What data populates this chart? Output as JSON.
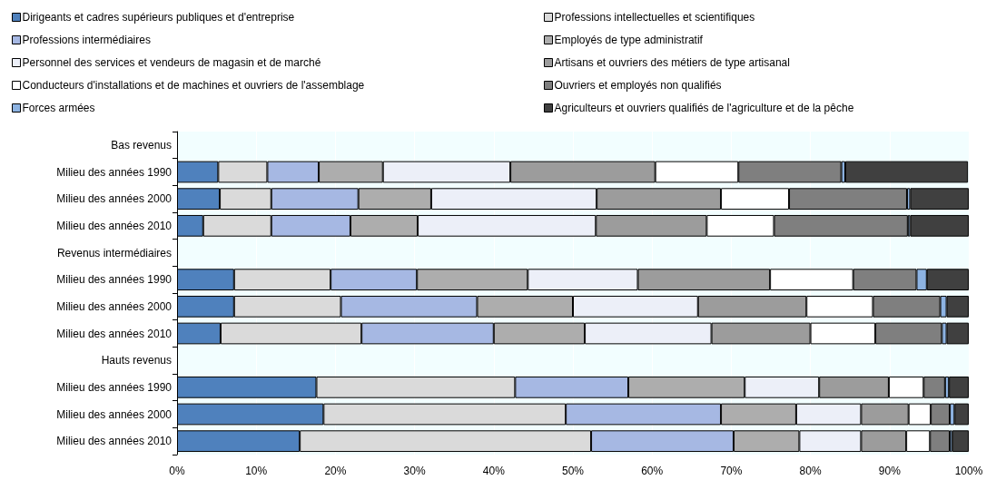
{
  "chart_data": {
    "type": "bar",
    "orientation": "horizontal",
    "stacked": true,
    "grid": "x",
    "legend": "top",
    "categories": [
      "Bas revenus",
      "Milieu des années 1990",
      "Milieu des années 2000",
      "Milieu des années 2010",
      "Revenus intermédiaires",
      "Milieu des années 1990",
      "Milieu des années 2000",
      "Milieu des années 2010",
      "Hauts revenus",
      "Milieu des années 1990",
      "Milieu des années 2000",
      "Milieu des années 2010"
    ],
    "xlim": [
      0,
      100
    ],
    "xticks": [
      {
        "value": 0,
        "label": "0%"
      },
      {
        "value": 10,
        "label": "10%"
      },
      {
        "value": 20,
        "label": "20%"
      },
      {
        "value": 30,
        "label": "30%"
      },
      {
        "value": 40,
        "label": "40%"
      },
      {
        "value": 50,
        "label": "50%"
      },
      {
        "value": 60,
        "label": "60%"
      },
      {
        "value": 70,
        "label": "70%"
      },
      {
        "value": 80,
        "label": "80%"
      },
      {
        "value": 90,
        "label": "90%"
      },
      {
        "value": 100,
        "label": "100%"
      }
    ],
    "series": [
      {
        "name": "Dirigeants et cadres supérieurs publiques et d'entreprise",
        "color": "#4f81bd",
        "values": [
          null,
          5.2,
          5.4,
          3.3,
          null,
          7.2,
          7.2,
          5.5,
          null,
          17.6,
          18.5,
          15.5
        ]
      },
      {
        "name": "Professions intellectuelles et scientifiques",
        "color": "#dadada",
        "values": [
          null,
          6.2,
          6.5,
          8.6,
          null,
          12.2,
          13.5,
          17.8,
          null,
          25.1,
          30.6,
          36.8
        ]
      },
      {
        "name": "Professions intermédiaires",
        "color": "#a6b8e3",
        "values": [
          null,
          6.5,
          11.0,
          10.0,
          null,
          10.9,
          17.2,
          16.7,
          null,
          14.3,
          19.6,
          18.0
        ]
      },
      {
        "name": "Employés de type administratif",
        "color": "#adadad",
        "values": [
          null,
          8.1,
          9.2,
          8.5,
          null,
          14.0,
          12.1,
          11.5,
          null,
          14.7,
          9.5,
          8.3
        ]
      },
      {
        "name": "Personnel des services et vendeurs de magasin et de marché",
        "color": "#eceff8",
        "values": [
          null,
          16.1,
          20.9,
          22.5,
          null,
          13.9,
          15.8,
          16.0,
          null,
          9.4,
          8.2,
          7.8
        ]
      },
      {
        "name": "Artisans et ouvriers des métiers de type artisanal",
        "color": "#9c9c9c",
        "values": [
          null,
          18.3,
          15.7,
          14.0,
          null,
          16.7,
          13.7,
          12.5,
          null,
          8.8,
          6.0,
          5.7
        ]
      },
      {
        "name": "Conducteurs d'installations et de machines et ouvriers de l'assemblage",
        "color": "#ffffff",
        "values": [
          null,
          10.5,
          8.6,
          8.5,
          null,
          10.5,
          8.4,
          8.2,
          null,
          4.4,
          2.8,
          3.0
        ]
      },
      {
        "name": "Ouvriers et employés non qualifiés",
        "color": "#7f7f7f",
        "values": [
          null,
          13.0,
          14.9,
          16.9,
          null,
          8.0,
          8.5,
          8.4,
          null,
          2.7,
          2.4,
          2.5
        ]
      },
      {
        "name": "Forces armées",
        "color": "#8db3e2",
        "values": [
          null,
          0.5,
          0.4,
          0.3,
          null,
          1.3,
          0.8,
          0.6,
          null,
          0.5,
          0.6,
          0.3
        ]
      },
      {
        "name": "Agriculteurs et ouvriers qualifiés de l'agriculture et de la pêche",
        "color": "#404040",
        "values": [
          null,
          15.5,
          7.4,
          7.4,
          null,
          5.3,
          2.8,
          2.8,
          null,
          2.5,
          1.8,
          2.1
        ]
      }
    ]
  }
}
